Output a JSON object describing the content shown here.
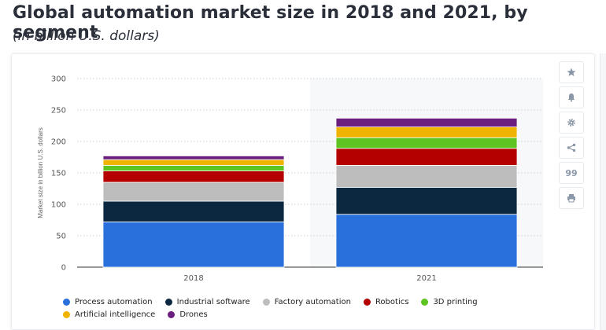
{
  "header": {
    "title": "Global automation market size in 2018 and 2021, by segment",
    "subtitle": "(in billion U.S. dollars)"
  },
  "toolbar": {
    "buttons": [
      {
        "icon": "star-icon"
      },
      {
        "icon": "bell-icon"
      },
      {
        "icon": "gear-icon"
      },
      {
        "icon": "share-icon"
      },
      {
        "icon": "quote-icon",
        "label": "99"
      },
      {
        "icon": "print-icon"
      }
    ]
  },
  "chart_data": {
    "type": "bar",
    "stacked": true,
    "categories": [
      "2018",
      "2021"
    ],
    "ylabel": "Market size in billion U.S. dollars",
    "ylim": [
      0,
      300
    ],
    "yticks": [
      0,
      50,
      100,
      150,
      200,
      250,
      300
    ],
    "grid": true,
    "legend_position": "bottom",
    "series": [
      {
        "name": "Process automation",
        "color": "#2970dd",
        "values": [
          72,
          84
        ]
      },
      {
        "name": "Industrial software",
        "color": "#0c2840",
        "values": [
          33,
          43
        ]
      },
      {
        "name": "Factory automation",
        "color": "#bdbdbd",
        "values": [
          30,
          35
        ]
      },
      {
        "name": "Robotics",
        "color": "#b50000",
        "values": [
          18,
          27
        ]
      },
      {
        "name": "3D printing",
        "color": "#5dc422",
        "values": [
          9,
          17
        ]
      },
      {
        "name": "Artificial intelligence",
        "color": "#f0b400",
        "values": [
          9,
          17
        ]
      },
      {
        "name": "Drones",
        "color": "#6b1f7e",
        "values": [
          6,
          14
        ]
      }
    ]
  }
}
